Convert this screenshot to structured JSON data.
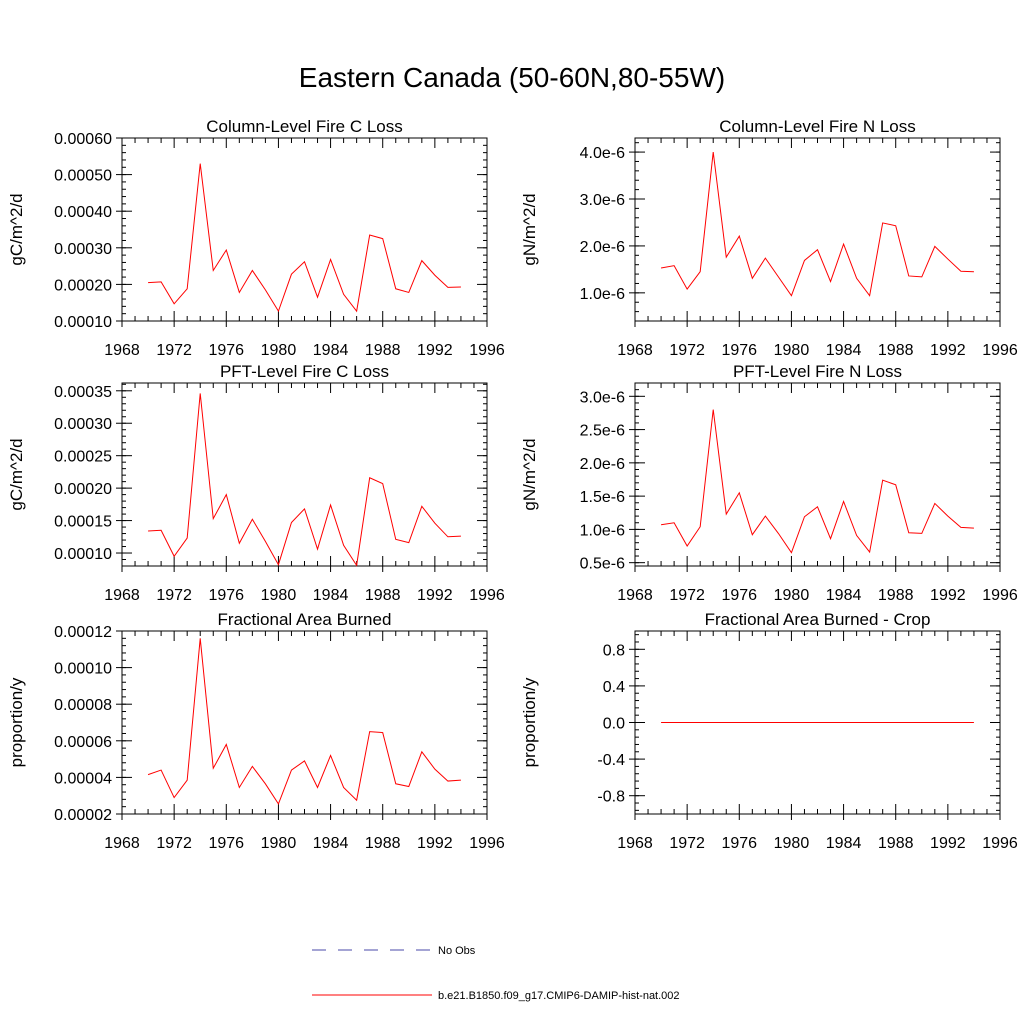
{
  "title": "Eastern Canada (50-60N,80-55W)",
  "legend": {
    "obs_label": "No Obs",
    "model_label": "b.e21.B1850.f09_g17.CMIP6-DAMIP-hist-nat.002",
    "obs_color": "#4a4aa8",
    "model_color": "#ff0000"
  },
  "chart_data": [
    {
      "type": "line",
      "title": "Column-Level Fire C Loss",
      "ylabel": "gC/m^2/d",
      "xlim": [
        1968,
        1996
      ],
      "ylim": [
        0.0001,
        0.0006
      ],
      "x_ticks": [
        1968,
        1972,
        1976,
        1980,
        1984,
        1988,
        1992,
        1996
      ],
      "y_ticks": [
        0.0001,
        0.0002,
        0.0003,
        0.0004,
        0.0005,
        0.0006
      ],
      "y_tick_labels": [
        "0.00010",
        "0.00020",
        "0.00030",
        "0.00040",
        "0.00050",
        "0.00060"
      ],
      "x": [
        1970,
        1971,
        1972,
        1973,
        1974,
        1975,
        1976,
        1977,
        1978,
        1979,
        1980,
        1981,
        1982,
        1983,
        1984,
        1985,
        1986,
        1987,
        1988,
        1989,
        1990,
        1991,
        1992,
        1993,
        1994
      ],
      "series": [
        {
          "values": [
            0.000205,
            0.000207,
            0.000147,
            0.000188,
            0.00053,
            0.000238,
            0.000294,
            0.000178,
            0.000238,
            0.000185,
            0.000127,
            0.000228,
            0.000262,
            0.000165,
            0.000268,
            0.000173,
            0.000127,
            0.000335,
            0.000325,
            0.000188,
            0.000178,
            0.000265,
            0.000225,
            0.000192,
            0.000193
          ]
        }
      ]
    },
    {
      "type": "line",
      "title": "Column-Level Fire N Loss",
      "ylabel": "gN/m^2/d",
      "xlim": [
        1968,
        1996
      ],
      "ylim": [
        4e-07,
        4.3e-06
      ],
      "x_ticks": [
        1968,
        1972,
        1976,
        1980,
        1984,
        1988,
        1992,
        1996
      ],
      "y_ticks": [
        1e-06,
        2e-06,
        3e-06,
        4e-06
      ],
      "y_tick_labels": [
        "1.0e-6",
        "2.0e-6",
        "3.0e-6",
        "4.0e-6"
      ],
      "x": [
        1970,
        1971,
        1972,
        1973,
        1974,
        1975,
        1976,
        1977,
        1978,
        1979,
        1980,
        1981,
        1982,
        1983,
        1984,
        1985,
        1986,
        1987,
        1988,
        1989,
        1990,
        1991,
        1992,
        1993,
        1994
      ],
      "series": [
        {
          "values": [
            1.53e-06,
            1.58e-06,
            1.08e-06,
            1.45e-06,
            4e-06,
            1.76e-06,
            2.21e-06,
            1.31e-06,
            1.74e-06,
            1.34e-06,
            9.4e-07,
            1.69e-06,
            1.92e-06,
            1.24e-06,
            2.04e-06,
            1.31e-06,
            9.4e-07,
            2.49e-06,
            2.43e-06,
            1.36e-06,
            1.34e-06,
            1.99e-06,
            1.72e-06,
            1.46e-06,
            1.45e-06
          ]
        }
      ]
    },
    {
      "type": "line",
      "title": "PFT-Level Fire C Loss",
      "ylabel": "gC/m^2/d",
      "xlim": [
        1968,
        1996
      ],
      "ylim": [
        8e-05,
        0.000362
      ],
      "x_ticks": [
        1968,
        1972,
        1976,
        1980,
        1984,
        1988,
        1992,
        1996
      ],
      "y_ticks": [
        0.0001,
        0.00015,
        0.0002,
        0.00025,
        0.0003,
        0.00035
      ],
      "y_tick_labels": [
        "0.00010",
        "0.00015",
        "0.00020",
        "0.00025",
        "0.00030",
        "0.00035"
      ],
      "x": [
        1970,
        1971,
        1972,
        1973,
        1974,
        1975,
        1976,
        1977,
        1978,
        1979,
        1980,
        1981,
        1982,
        1983,
        1984,
        1985,
        1986,
        1987,
        1988,
        1989,
        1990,
        1991,
        1992,
        1993,
        1994
      ],
      "series": [
        {
          "values": [
            0.000134,
            0.000135,
            9.5e-05,
            0.000123,
            0.000346,
            0.000153,
            0.00019,
            0.000115,
            0.000152,
            0.000118,
            8.2e-05,
            0.000147,
            0.000168,
            0.000106,
            0.000174,
            0.000112,
            8.1e-05,
            0.000216,
            0.000207,
            0.000121,
            0.000116,
            0.000172,
            0.000146,
            0.000125,
            0.000126
          ]
        }
      ]
    },
    {
      "type": "line",
      "title": "PFT-Level Fire N Loss",
      "ylabel": "gN/m^2/d",
      "xlim": [
        1968,
        1996
      ],
      "ylim": [
        4.5e-07,
        3.2e-06
      ],
      "x_ticks": [
        1968,
        1972,
        1976,
        1980,
        1984,
        1988,
        1992,
        1996
      ],
      "y_ticks": [
        5e-07,
        1e-06,
        1.5e-06,
        2e-06,
        2.5e-06,
        3e-06
      ],
      "y_tick_labels": [
        "0.5e-6",
        "1.0e-6",
        "1.5e-6",
        "2.0e-6",
        "2.5e-6",
        "3.0e-6"
      ],
      "x": [
        1970,
        1971,
        1972,
        1973,
        1974,
        1975,
        1976,
        1977,
        1978,
        1979,
        1980,
        1981,
        1982,
        1983,
        1984,
        1985,
        1986,
        1987,
        1988,
        1989,
        1990,
        1991,
        1992,
        1993,
        1994
      ],
      "series": [
        {
          "values": [
            1.07e-06,
            1.1e-06,
            7.5e-07,
            1.04e-06,
            2.8e-06,
            1.23e-06,
            1.55e-06,
            9.2e-07,
            1.2e-06,
            9.4e-07,
            6.5e-07,
            1.19e-06,
            1.34e-06,
            8.6e-07,
            1.42e-06,
            9.1e-07,
            6.6e-07,
            1.74e-06,
            1.67e-06,
            9.5e-07,
            9.4e-07,
            1.39e-06,
            1.2e-06,
            1.03e-06,
            1.02e-06
          ]
        }
      ]
    },
    {
      "type": "line",
      "title": "Fractional Area Burned",
      "ylabel": "proportion/y",
      "xlim": [
        1968,
        1996
      ],
      "ylim": [
        2e-05,
        0.00012
      ],
      "x_ticks": [
        1968,
        1972,
        1976,
        1980,
        1984,
        1988,
        1992,
        1996
      ],
      "y_ticks": [
        2e-05,
        4e-05,
        6e-05,
        8e-05,
        0.0001,
        0.00012
      ],
      "y_tick_labels": [
        "0.00002",
        "0.00004",
        "0.00006",
        "0.00008",
        "0.00010",
        "0.00012"
      ],
      "x": [
        1970,
        1971,
        1972,
        1973,
        1974,
        1975,
        1976,
        1977,
        1978,
        1979,
        1980,
        1981,
        1982,
        1983,
        1984,
        1985,
        1986,
        1987,
        1988,
        1989,
        1990,
        1991,
        1992,
        1993,
        1994
      ],
      "series": [
        {
          "values": [
            4.15e-05,
            4.4e-05,
            2.9e-05,
            3.85e-05,
            0.000116,
            4.5e-05,
            5.8e-05,
            3.45e-05,
            4.6e-05,
            3.65e-05,
            2.55e-05,
            4.4e-05,
            4.9e-05,
            3.45e-05,
            5.2e-05,
            3.45e-05,
            2.75e-05,
            6.5e-05,
            6.45e-05,
            3.65e-05,
            3.5e-05,
            5.4e-05,
            4.45e-05,
            3.8e-05,
            3.85e-05
          ]
        }
      ]
    },
    {
      "type": "line",
      "title": "Fractional Area Burned - Crop",
      "ylabel": "proportion/y",
      "xlim": [
        1968,
        1996
      ],
      "ylim": [
        -1.0,
        1.0
      ],
      "x_ticks": [
        1968,
        1972,
        1976,
        1980,
        1984,
        1988,
        1992,
        1996
      ],
      "y_ticks": [
        -0.8,
        -0.4,
        0.0,
        0.4,
        0.8
      ],
      "y_tick_labels": [
        "-0.8",
        "-0.4",
        "0.0",
        "0.4",
        "0.8"
      ],
      "x": [
        1970,
        1971,
        1972,
        1973,
        1974,
        1975,
        1976,
        1977,
        1978,
        1979,
        1980,
        1981,
        1982,
        1983,
        1984,
        1985,
        1986,
        1987,
        1988,
        1989,
        1990,
        1991,
        1992,
        1993,
        1994
      ],
      "series": [
        {
          "values": [
            0,
            0,
            0,
            0,
            0,
            0,
            0,
            0,
            0,
            0,
            0,
            0,
            0,
            0,
            0,
            0,
            0,
            0,
            0,
            0,
            0,
            0,
            0,
            0,
            0
          ]
        }
      ]
    }
  ]
}
